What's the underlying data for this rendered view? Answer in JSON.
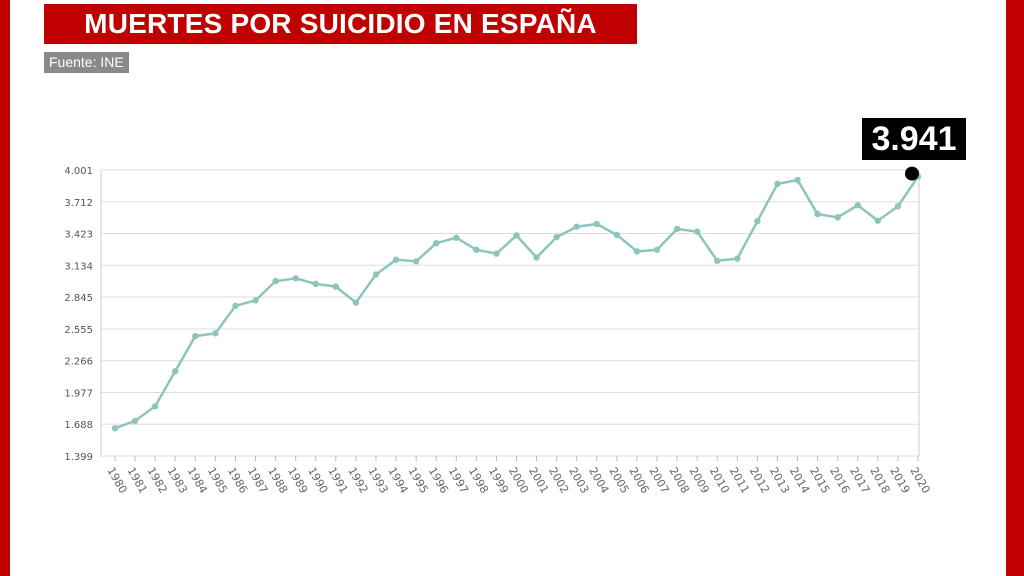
{
  "header": {
    "title": "MUERTES POR SUICIDIO EN ESPAÑA"
  },
  "source": {
    "label": "Fuente: INE"
  },
  "highlight": {
    "label": "3.941",
    "year": "2020",
    "value": 3941
  },
  "colors": {
    "brand": "#c00000",
    "line": "#8dc5bd",
    "badge": "#8a8a8a",
    "grid": "#dddddd"
  },
  "chart_data": {
    "type": "line",
    "title": "MUERTES POR SUICIDIO EN ESPAÑA",
    "xlabel": "",
    "ylabel": "",
    "grid": true,
    "ylim": [
      1399,
      4001
    ],
    "yticks": [
      "1.399",
      "1.688",
      "1.977",
      "2.266",
      "2.555",
      "2.845",
      "3.134",
      "3.423",
      "3.712",
      "4.001"
    ],
    "categories": [
      "1980",
      "1981",
      "1982",
      "1983",
      "1984",
      "1985",
      "1986",
      "1987",
      "1988",
      "1989",
      "1990",
      "1991",
      "1992",
      "1993",
      "1994",
      "1995",
      "1996",
      "1997",
      "1998",
      "1999",
      "2000",
      "2001",
      "2002",
      "2003",
      "2004",
      "2005",
      "2006",
      "2007",
      "2008",
      "2009",
      "2010",
      "2011",
      "2012",
      "2013",
      "2014",
      "2015",
      "2016",
      "2017",
      "2018",
      "2019",
      "2020"
    ],
    "series": [
      {
        "values": [
          1652,
          1718,
          1852,
          2170,
          2490,
          2515,
          2765,
          2815,
          2990,
          3015,
          2965,
          2940,
          2795,
          3050,
          3185,
          3170,
          3335,
          3385,
          3275,
          3240,
          3405,
          3205,
          3390,
          3485,
          3510,
          3410,
          3260,
          3275,
          3465,
          3440,
          3175,
          3195,
          3535,
          3875,
          3910,
          3600,
          3570,
          3680,
          3540,
          3670,
          3941
        ]
      }
    ]
  }
}
